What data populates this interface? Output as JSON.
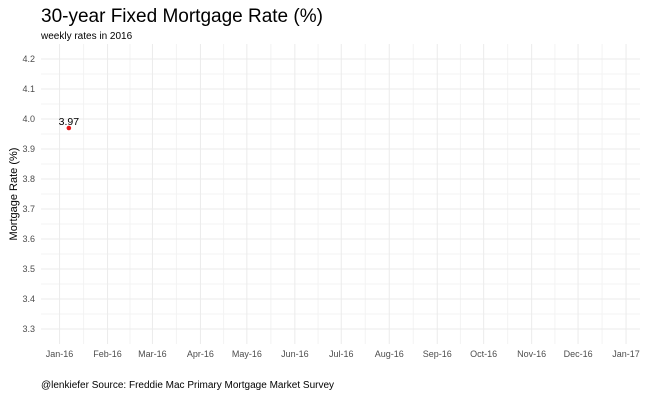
{
  "chart_data": {
    "type": "scatter",
    "title": "30-year Fixed Mortgage Rate (%)",
    "subtitle": "weekly rates in 2016",
    "xlabel": "",
    "ylabel": "Mortgage Rate (%)",
    "caption": "@lenkiefer Source: Freddie Mac Primary Mortgage Market Survey",
    "x_ticks": [
      "Jan-16",
      "Feb-16",
      "Mar-16",
      "Apr-16",
      "May-16",
      "Jun-16",
      "Jul-16",
      "Aug-16",
      "Sep-16",
      "Oct-16",
      "Nov-16",
      "Dec-16",
      "Jan-17"
    ],
    "y_ticks": [
      "3.3",
      "3.4",
      "3.5",
      "3.6",
      "3.7",
      "3.8",
      "3.9",
      "4.0",
      "4.1",
      "4.2"
    ],
    "ylim": [
      3.25,
      4.25
    ],
    "xlim": [
      "2015-12-20",
      "2017-01-10"
    ],
    "grid": true,
    "point_color": "#e41a1c",
    "series": [
      {
        "points": [
          {
            "x": "2016-01-07",
            "y": 3.97,
            "label": "3.97"
          }
        ]
      }
    ]
  }
}
